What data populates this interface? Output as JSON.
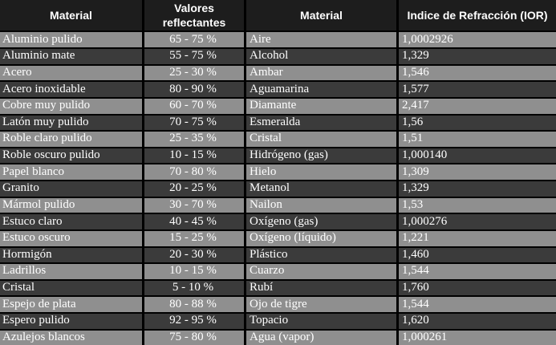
{
  "colors": {
    "header_bg": "#1d1d1d",
    "row_gray": "#8f8f8f",
    "row_dark": "#3b3b3b",
    "border": "#000000",
    "text": "#ffffff"
  },
  "table": {
    "headers": [
      "Material",
      "Valores reflectantes",
      "Material",
      "Indice de Refracción (IOR)"
    ],
    "rows": [
      [
        "Aluminio pulido",
        "65 - 75 %",
        "Aire",
        "1,0002926"
      ],
      [
        "Aluminio mate",
        "55 - 75 %",
        "Alcohol",
        "1,329"
      ],
      [
        "Acero",
        "25 - 30 %",
        "Ambar",
        "1,546"
      ],
      [
        "Acero inoxidable",
        "80 - 90 %",
        "Aguamarina",
        "1,577"
      ],
      [
        "Cobre muy pulido",
        "60 - 70 %",
        "Diamante",
        "2,417"
      ],
      [
        "Latón muy pulido",
        "70 - 75 %",
        "Esmeralda",
        "1,56"
      ],
      [
        "Roble claro pulido",
        "25 - 35 %",
        "Cristal",
        "1,51"
      ],
      [
        "Roble oscuro pulido",
        "10 - 15 %",
        "Hidrógeno (gas)",
        "1,000140"
      ],
      [
        "Papel blanco",
        "70 - 80 %",
        "Hielo",
        "1,309"
      ],
      [
        "Granito",
        "20 - 25 %",
        "Metanol",
        "1,329"
      ],
      [
        "Mármol pulido",
        "30 - 70 %",
        "Nailon",
        "1,53"
      ],
      [
        "Estuco claro",
        "40 - 45 %",
        "Oxígeno (gas)",
        "1,000276"
      ],
      [
        "Estuco oscuro",
        "15 - 25 %",
        "Oxígeno (líquido)",
        "1,221"
      ],
      [
        "Hormigón",
        "20 - 30 %",
        "Plástico",
        "1,460"
      ],
      [
        "Ladrillos",
        "10 - 15 %",
        "Cuarzo",
        "1,544"
      ],
      [
        "Cristal",
        "5 - 10 %",
        "Rubí",
        "1,760"
      ],
      [
        "Espejo de plata",
        "80 - 88 %",
        "Ojo de tigre",
        "1,544"
      ],
      [
        "Espero pulido",
        "92 - 95 %",
        "Topacio",
        "1,620"
      ],
      [
        "Azulejos blancos",
        "75 - 80 %",
        "Agua (vapor)",
        "1,000261"
      ]
    ]
  }
}
